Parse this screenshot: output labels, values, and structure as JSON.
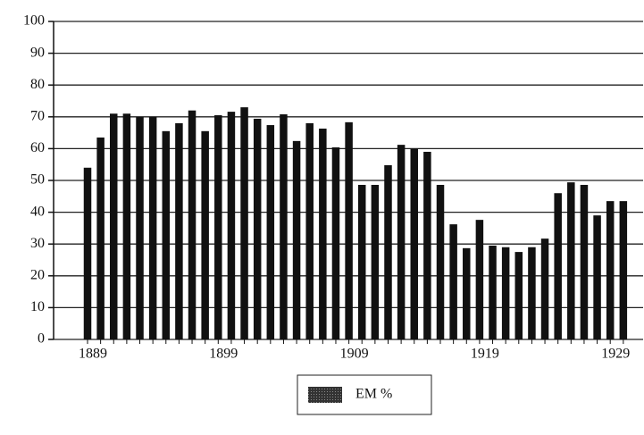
{
  "chart_data": {
    "type": "bar",
    "categories": [
      "1889",
      null,
      null,
      null,
      null,
      null,
      null,
      null,
      null,
      null,
      "1899",
      null,
      null,
      null,
      null,
      null,
      null,
      null,
      null,
      null,
      "1909",
      null,
      null,
      null,
      null,
      null,
      null,
      null,
      null,
      null,
      "1919",
      null,
      null,
      null,
      null,
      null,
      null,
      null,
      null,
      null,
      "1929",
      null
    ],
    "series": [
      {
        "name": "EM %",
        "color": "#111111",
        "values": [
          54,
          63.5,
          71,
          71,
          70,
          70,
          65.5,
          68,
          72,
          65.5,
          70.5,
          71.6,
          73,
          69.4,
          67.4,
          70.8,
          62.4,
          68,
          66.3,
          60.4,
          68.3,
          48.6,
          48.6,
          54.8,
          61.2,
          60,
          59,
          48.6,
          36.2,
          28.7,
          37.6,
          29.5,
          29,
          27.5,
          29,
          31.7,
          46,
          49.4,
          48.6,
          39,
          43.5,
          43.5
        ]
      }
    ],
    "ylim": [
      0,
      100
    ],
    "yticks": [
      0,
      10,
      20,
      30,
      40,
      50,
      60,
      70,
      80,
      90,
      100
    ],
    "grid": true
  }
}
